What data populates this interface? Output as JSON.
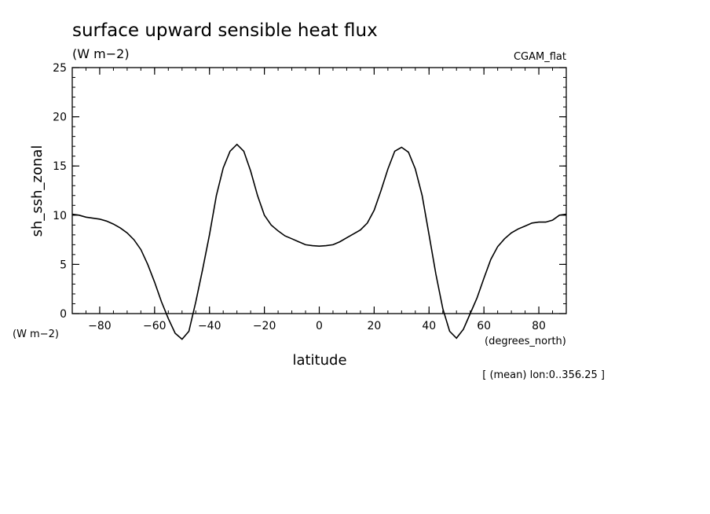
{
  "chart_data": {
    "type": "line",
    "title": "surface upward sensible heat flux",
    "units": "(W m−2)",
    "dataset": "CGAM_flat",
    "xlabel": "latitude",
    "xunits": "(degrees_north)",
    "ylabel": "sh_ssh_zonal",
    "yunits": "(W m−2)",
    "footnote": "[ (mean) lon:0..356.25 ]",
    "xlim": [
      -90,
      90
    ],
    "ylim": [
      0,
      25
    ],
    "xticks": [
      -80,
      -60,
      -40,
      -20,
      0,
      20,
      40,
      60,
      80
    ],
    "xtick_labels": [
      "−80",
      "−60",
      "−40",
      "−20",
      "0",
      "20",
      "40",
      "60",
      "80"
    ],
    "yticks": [
      0,
      5,
      10,
      15,
      20,
      25
    ],
    "ytick_labels": [
      "0",
      "5",
      "10",
      "15",
      "20",
      "25"
    ],
    "grid": false,
    "series": [
      {
        "color": "#000000",
        "x": [
          -90,
          -87.5,
          -85,
          -82.5,
          -80,
          -77.5,
          -75,
          -72.5,
          -70,
          -67.5,
          -65,
          -62.5,
          -60,
          -57.5,
          -55,
          -52.5,
          -50,
          -47.5,
          -45,
          -42.5,
          -40,
          -37.5,
          -35,
          -32.5,
          -30,
          -27.5,
          -25,
          -22.5,
          -20,
          -17.5,
          -15,
          -12.5,
          -10,
          -7.5,
          -5,
          -2.5,
          0,
          2.5,
          5,
          7.5,
          10,
          12.5,
          15,
          17.5,
          20,
          22.5,
          25,
          27.5,
          30,
          32.5,
          35,
          37.5,
          40,
          42.5,
          45,
          47.5,
          50,
          52.5,
          55,
          57.5,
          60,
          62.5,
          65,
          67.5,
          70,
          72.5,
          75,
          77.5,
          80,
          82.5,
          85,
          87.5,
          90
        ],
        "y": [
          10.1,
          10.0,
          9.8,
          9.7,
          9.6,
          9.4,
          9.1,
          8.7,
          8.2,
          7.5,
          6.5,
          5.0,
          3.2,
          1.2,
          -0.5,
          -2.0,
          -2.6,
          -1.8,
          1.2,
          4.5,
          8.0,
          12.0,
          14.8,
          16.5,
          17.2,
          16.5,
          14.5,
          12.0,
          10.0,
          9.0,
          8.4,
          7.9,
          7.6,
          7.3,
          7.0,
          6.9,
          6.85,
          6.9,
          7.0,
          7.3,
          7.7,
          8.1,
          8.5,
          9.2,
          10.5,
          12.5,
          14.7,
          16.5,
          16.9,
          16.4,
          14.7,
          12.0,
          8.0,
          4.0,
          0.5,
          -1.8,
          -2.5,
          -1.6,
          0.0,
          1.6,
          3.6,
          5.5,
          6.8,
          7.6,
          8.2,
          8.6,
          8.9,
          9.2,
          9.3,
          9.3,
          9.5,
          10.0,
          10.1
        ]
      }
    ]
  }
}
